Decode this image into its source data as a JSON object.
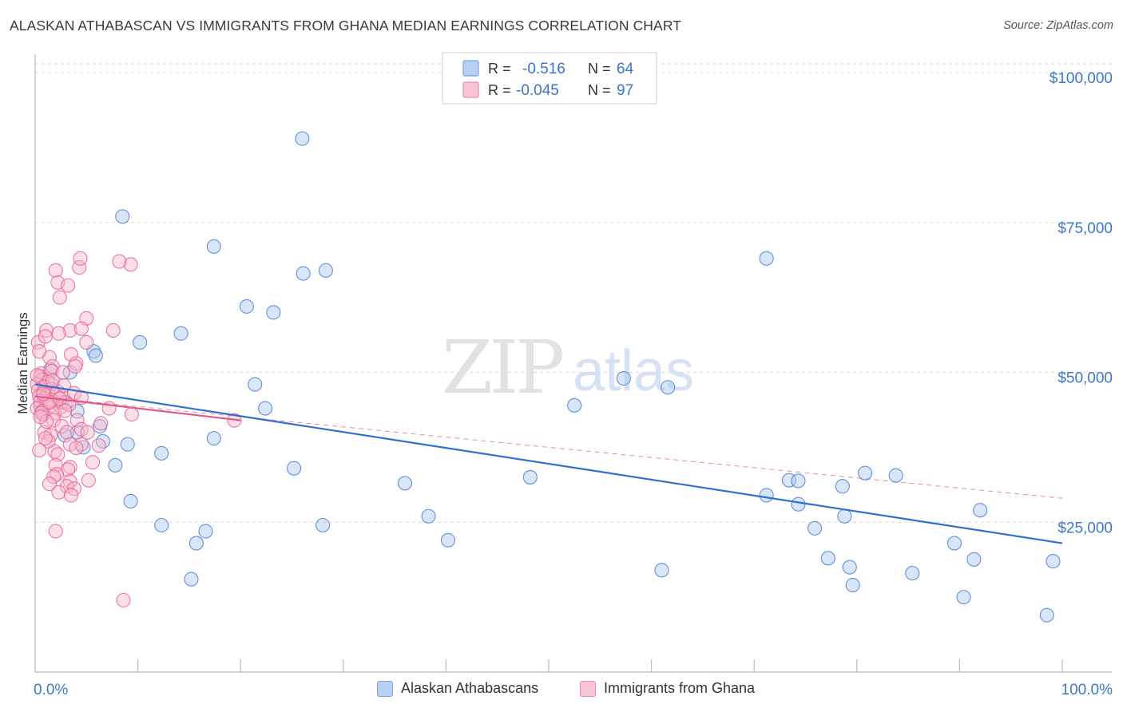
{
  "title": "ALASKAN ATHABASCAN VS IMMIGRANTS FROM GHANA MEDIAN EARNINGS CORRELATION CHART",
  "source": "Source: ZipAtlas.com",
  "watermark": {
    "zip": "ZIP",
    "atlas": "atlas"
  },
  "colors": {
    "blue": "#4a7fd6",
    "blue_fill": "#aac8f0",
    "blue_line": "#2f6fd0",
    "pink": "#e8638f",
    "pink_fill": "#f6b9cc",
    "pink_line": "#e0588a",
    "axis_label": "#3d78c9",
    "grid": "#d8d8d8"
  },
  "legend": [
    {
      "r_label": "R =",
      "r_value": "-0.516",
      "n_label": "N =",
      "n_value": "64"
    },
    {
      "r_label": "R =",
      "r_value": "-0.045",
      "n_label": "N =",
      "n_value": "97"
    }
  ],
  "chart_data": {
    "type": "scatter",
    "title": "ALASKAN ATHABASCAN VS IMMIGRANTS FROM GHANA MEDIAN EARNINGS CORRELATION CHART",
    "xlabel": "",
    "ylabel": "Median Earnings",
    "xlim": [
      0,
      100
    ],
    "ylim": [
      0,
      102000
    ],
    "x_tick_labels": [
      "0.0%",
      "100.0%"
    ],
    "y_ticks": [
      25000,
      50000,
      75000,
      100000
    ],
    "y_tick_labels": [
      "$25,000",
      "$50,000",
      "$75,000",
      "$100,000"
    ],
    "legend_position": "bottom",
    "series": [
      {
        "name": "Alaskan Athabascans",
        "color": "blue",
        "trend": {
          "x": [
            0,
            100
          ],
          "y": [
            48000,
            21500
          ]
        },
        "points": [
          [
            26.0,
            89000
          ],
          [
            8.5,
            76000
          ],
          [
            17.4,
            71000
          ],
          [
            28.3,
            67000
          ],
          [
            26.1,
            66500
          ],
          [
            71.2,
            69000
          ],
          [
            20.6,
            61000
          ],
          [
            23.2,
            60000
          ],
          [
            14.2,
            56500
          ],
          [
            10.2,
            55000
          ],
          [
            5.7,
            53500
          ],
          [
            5.9,
            52800
          ],
          [
            1.5,
            50500
          ],
          [
            3.4,
            50000
          ],
          [
            57.3,
            49000
          ],
          [
            21.4,
            48000
          ],
          [
            61.6,
            47500
          ],
          [
            1.6,
            48000
          ],
          [
            2.6,
            45000
          ],
          [
            22.4,
            44000
          ],
          [
            52.5,
            44500
          ],
          [
            0.8,
            43000
          ],
          [
            4.1,
            43500
          ],
          [
            6.3,
            41000
          ],
          [
            4.1,
            40000
          ],
          [
            2.9,
            39500
          ],
          [
            17.4,
            39000
          ],
          [
            6.6,
            38500
          ],
          [
            9.0,
            38000
          ],
          [
            4.7,
            37500
          ],
          [
            12.3,
            36500
          ],
          [
            7.8,
            34500
          ],
          [
            25.2,
            34000
          ],
          [
            80.8,
            33200
          ],
          [
            83.8,
            32800
          ],
          [
            36.0,
            31500
          ],
          [
            48.2,
            32500
          ],
          [
            73.4,
            32000
          ],
          [
            74.3,
            31900
          ],
          [
            78.6,
            31000
          ],
          [
            71.2,
            29500
          ],
          [
            9.3,
            28500
          ],
          [
            74.3,
            28000
          ],
          [
            92.0,
            27000
          ],
          [
            38.3,
            26000
          ],
          [
            78.8,
            26000
          ],
          [
            12.3,
            24500
          ],
          [
            28.0,
            24500
          ],
          [
            75.9,
            24000
          ],
          [
            16.6,
            23500
          ],
          [
            40.2,
            22000
          ],
          [
            15.7,
            21500
          ],
          [
            89.5,
            21500
          ],
          [
            61.0,
            17000
          ],
          [
            77.2,
            19000
          ],
          [
            79.3,
            17500
          ],
          [
            85.4,
            16500
          ],
          [
            91.4,
            18800
          ],
          [
            99.1,
            18500
          ],
          [
            15.2,
            15500
          ],
          [
            79.6,
            14500
          ],
          [
            90.4,
            12500
          ],
          [
            98.5,
            9500
          ],
          [
            0.5,
            44500
          ]
        ]
      },
      {
        "name": "Immigrants from Ghana",
        "color": "pink",
        "trend": {
          "x": [
            0,
            20
          ],
          "y": [
            46000,
            42000
          ]
        },
        "trend_ext": {
          "x": [
            0,
            100
          ],
          "y": [
            46000,
            29000
          ]
        },
        "points": [
          [
            2.0,
            67000
          ],
          [
            4.3,
            67500
          ],
          [
            4.4,
            69000
          ],
          [
            9.3,
            68000
          ],
          [
            8.2,
            68500
          ],
          [
            2.2,
            65000
          ],
          [
            3.2,
            64500
          ],
          [
            2.4,
            62500
          ],
          [
            5.0,
            59000
          ],
          [
            1.1,
            57000
          ],
          [
            3.4,
            57000
          ],
          [
            7.6,
            57000
          ],
          [
            2.3,
            56500
          ],
          [
            4.5,
            57300
          ],
          [
            0.3,
            55000
          ],
          [
            1.0,
            56000
          ],
          [
            5.0,
            55000
          ],
          [
            1.4,
            52500
          ],
          [
            3.5,
            53000
          ],
          [
            0.4,
            53500
          ],
          [
            1.7,
            51000
          ],
          [
            4.0,
            51500
          ],
          [
            3.9,
            51000
          ],
          [
            0.6,
            49800
          ],
          [
            0.5,
            49300
          ],
          [
            1.6,
            50200
          ],
          [
            2.7,
            50000
          ],
          [
            0.7,
            48800
          ],
          [
            1.2,
            48400
          ],
          [
            0.2,
            48000
          ],
          [
            0.9,
            47600
          ],
          [
            1.6,
            47200
          ],
          [
            0.3,
            47000
          ],
          [
            0.8,
            46700
          ],
          [
            1.3,
            46300
          ],
          [
            2.2,
            46800
          ],
          [
            0.4,
            46000
          ],
          [
            0.9,
            45700
          ],
          [
            1.6,
            45400
          ],
          [
            0.5,
            45200
          ],
          [
            1.1,
            44800
          ],
          [
            2.7,
            46000
          ],
          [
            3.8,
            46500
          ],
          [
            4.5,
            45800
          ],
          [
            1.5,
            44400
          ],
          [
            0.2,
            44000
          ],
          [
            0.7,
            43500
          ],
          [
            2.5,
            44200
          ],
          [
            3.0,
            45000
          ],
          [
            1.9,
            43200
          ],
          [
            7.2,
            44000
          ],
          [
            9.4,
            43000
          ],
          [
            19.4,
            42000
          ],
          [
            1.8,
            42000
          ],
          [
            4.1,
            42000
          ],
          [
            6.4,
            41500
          ],
          [
            2.6,
            41000
          ],
          [
            4.5,
            40500
          ],
          [
            3.1,
            40000
          ],
          [
            5.1,
            40000
          ],
          [
            0.9,
            40000
          ],
          [
            1.5,
            39500
          ],
          [
            4.5,
            38000
          ],
          [
            1.3,
            38500
          ],
          [
            3.4,
            38000
          ],
          [
            6.2,
            37800
          ],
          [
            4.0,
            37400
          ],
          [
            0.4,
            37000
          ],
          [
            1.9,
            36800
          ],
          [
            2.2,
            36300
          ],
          [
            5.6,
            35000
          ],
          [
            2.0,
            34500
          ],
          [
            3.4,
            34200
          ],
          [
            3.2,
            33800
          ],
          [
            2.1,
            33000
          ],
          [
            1.8,
            32600
          ],
          [
            5.2,
            32000
          ],
          [
            3.4,
            31800
          ],
          [
            1.4,
            31400
          ],
          [
            3.1,
            31000
          ],
          [
            3.8,
            30600
          ],
          [
            2.3,
            30000
          ],
          [
            3.5,
            29500
          ],
          [
            2.0,
            23500
          ],
          [
            8.6,
            12000
          ],
          [
            0.6,
            43200
          ],
          [
            1.1,
            41800
          ],
          [
            2.8,
            47800
          ],
          [
            0.2,
            49500
          ],
          [
            1.4,
            45000
          ],
          [
            0.8,
            46400
          ],
          [
            2.4,
            45600
          ],
          [
            1.7,
            48600
          ],
          [
            0.5,
            42600
          ],
          [
            3.3,
            44600
          ],
          [
            1.0,
            39000
          ],
          [
            2.9,
            43600
          ]
        ]
      }
    ]
  }
}
